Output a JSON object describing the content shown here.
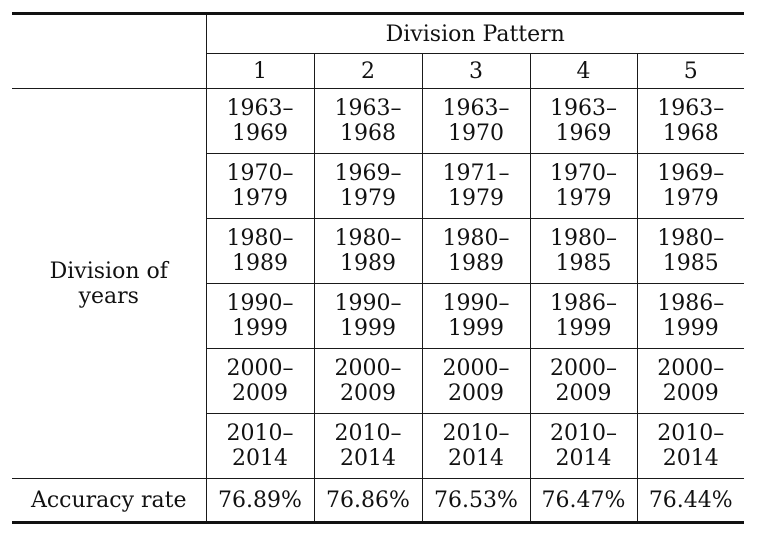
{
  "header": {
    "group_label": "Division Pattern",
    "patterns": [
      "1",
      "2",
      "3",
      "4",
      "5"
    ]
  },
  "row_label": "Division of years",
  "row_label_lines": [
    "Division of",
    "years"
  ],
  "divisions": [
    [
      [
        "1963–",
        "1969"
      ],
      [
        "1963–",
        "1968"
      ],
      [
        "1963–",
        "1970"
      ],
      [
        "1963–",
        "1969"
      ],
      [
        "1963–",
        "1968"
      ]
    ],
    [
      [
        "1970–",
        "1979"
      ],
      [
        "1969–",
        "1979"
      ],
      [
        "1971–",
        "1979"
      ],
      [
        "1970–",
        "1979"
      ],
      [
        "1969–",
        "1979"
      ]
    ],
    [
      [
        "1980–",
        "1989"
      ],
      [
        "1980–",
        "1989"
      ],
      [
        "1980–",
        "1989"
      ],
      [
        "1980–",
        "1985"
      ],
      [
        "1980–",
        "1985"
      ]
    ],
    [
      [
        "1990–",
        "1999"
      ],
      [
        "1990–",
        "1999"
      ],
      [
        "1990–",
        "1999"
      ],
      [
        "1986–",
        "1999"
      ],
      [
        "1986–",
        "1999"
      ]
    ],
    [
      [
        "2000–",
        "2009"
      ],
      [
        "2000–",
        "2009"
      ],
      [
        "2000–",
        "2009"
      ],
      [
        "2000–",
        "2009"
      ],
      [
        "2000–",
        "2009"
      ]
    ],
    [
      [
        "2010–",
        "2014"
      ],
      [
        "2010–",
        "2014"
      ],
      [
        "2010–",
        "2014"
      ],
      [
        "2010–",
        "2014"
      ],
      [
        "2010–",
        "2014"
      ]
    ]
  ],
  "accuracy": {
    "label": "Accuracy rate",
    "values": [
      "76.89%",
      "76.86%",
      "76.53%",
      "76.47%",
      "76.44%"
    ]
  }
}
